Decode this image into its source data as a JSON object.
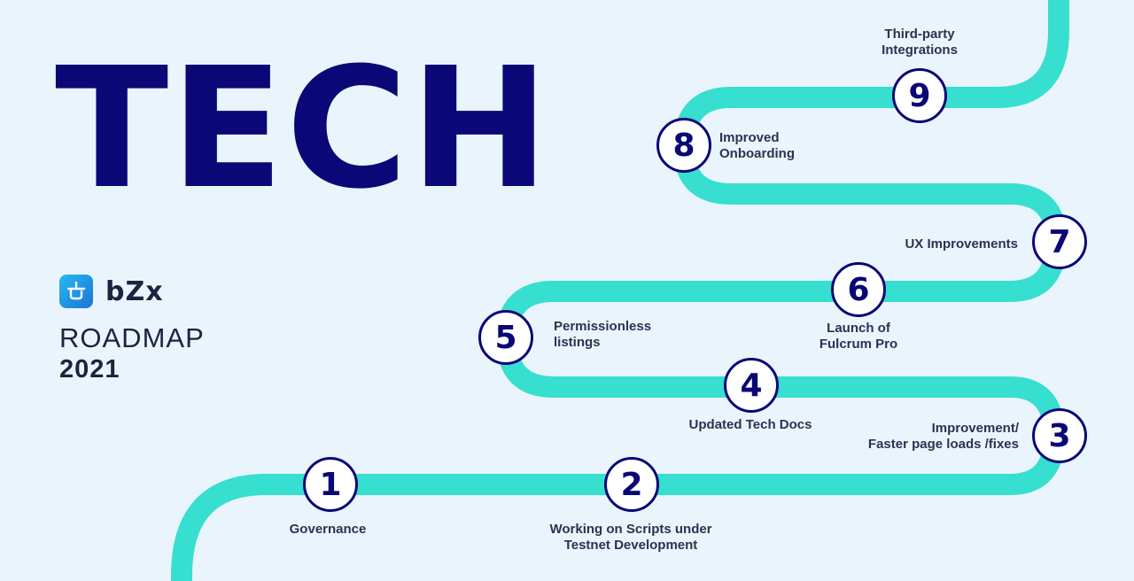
{
  "title": "TECH",
  "brand": {
    "name": "bZx",
    "logo_icon": "bzx-logo-icon"
  },
  "subtitle": {
    "line1": "ROADMAP",
    "line2": "2021"
  },
  "colors": {
    "road": "#36dfcf",
    "navy": "#0a0776",
    "background": "#eaf4fd",
    "text": "#2a3350"
  },
  "milestones": [
    {
      "number": "1",
      "label_line1": "Governance",
      "label_line2": ""
    },
    {
      "number": "2",
      "label_line1": "Working on Scripts under",
      "label_line2": "Testnet Development"
    },
    {
      "number": "3",
      "label_line1": "Improvement/",
      "label_line2": "Faster page loads /fixes"
    },
    {
      "number": "4",
      "label_line1": "Updated Tech Docs",
      "label_line2": ""
    },
    {
      "number": "5",
      "label_line1": "Permissionless",
      "label_line2": "listings"
    },
    {
      "number": "6",
      "label_line1": "Launch of",
      "label_line2": "Fulcrum Pro"
    },
    {
      "number": "7",
      "label_line1": "UX Improvements",
      "label_line2": ""
    },
    {
      "number": "8",
      "label_line1": "Improved",
      "label_line2": "Onboarding"
    },
    {
      "number": "9",
      "label_line1": "Third-party",
      "label_line2": "Integrations"
    }
  ]
}
